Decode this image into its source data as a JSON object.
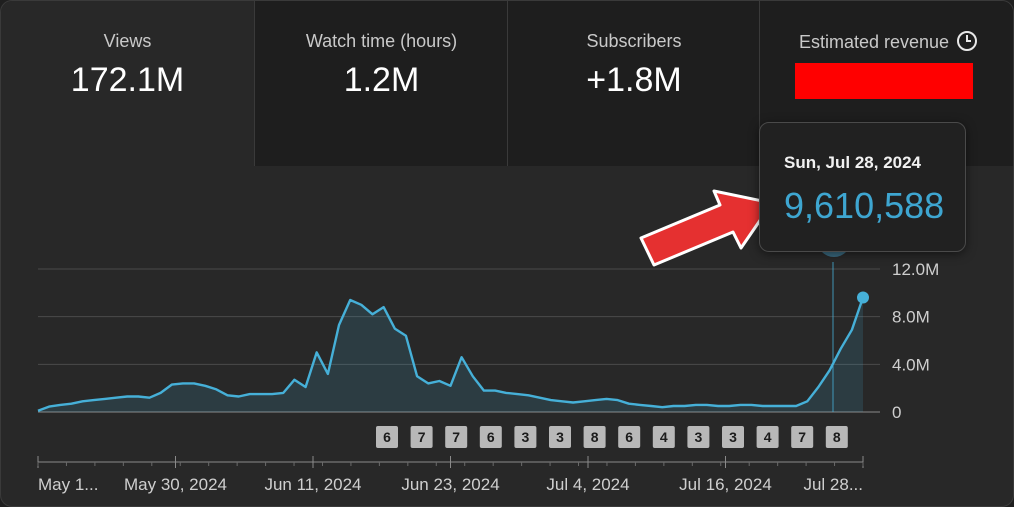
{
  "metrics": [
    {
      "label": "Views",
      "value": "172.1M"
    },
    {
      "label": "Watch time (hours)",
      "value": "1.2M"
    },
    {
      "label": "Subscribers",
      "value": "+1.8M"
    },
    {
      "label": "Estimated revenue",
      "value": ""
    }
  ],
  "revenue_icon": "clock-icon",
  "tooltip": {
    "date": "Sun, Jul 28, 2024",
    "value": "9,610,588"
  },
  "colors": {
    "line": "#46b0d8",
    "redact": "#ff0000",
    "arrow": "#e53030"
  },
  "chart_data": {
    "type": "area",
    "title": "Views",
    "x_labels": [
      "May 1...",
      "May 30, 2024",
      "Jun 11, 2024",
      "Jun 23, 2024",
      "Jul 4, 2024",
      "Jul 16, 2024",
      "Jul 28..."
    ],
    "y_ticks": [
      "0",
      "4.0M",
      "8.0M",
      "12.0M"
    ],
    "ylim": [
      0,
      12000000
    ],
    "series": [
      {
        "name": "Views",
        "values": [
          0.1,
          0.45,
          0.6,
          0.7,
          0.9,
          1.0,
          1.1,
          1.2,
          1.3,
          1.3,
          1.2,
          1.6,
          2.3,
          2.4,
          2.4,
          2.2,
          1.9,
          1.4,
          1.3,
          1.5,
          1.5,
          1.5,
          1.6,
          2.7,
          2.1,
          5.0,
          3.2,
          7.3,
          9.4,
          9.0,
          8.2,
          8.8,
          7.0,
          6.4,
          3.0,
          2.4,
          2.6,
          2.2,
          4.6,
          3.0,
          1.8,
          1.8,
          1.6,
          1.5,
          1.4,
          1.2,
          1.0,
          0.9,
          0.8,
          0.9,
          1.0,
          1.1,
          1.0,
          0.7,
          0.6,
          0.5,
          0.4,
          0.5,
          0.5,
          0.6,
          0.6,
          0.5,
          0.5,
          0.6,
          0.6,
          0.5,
          0.5,
          0.5,
          0.5,
          0.9,
          2.1,
          3.5,
          5.3,
          6.9,
          9.61
        ]
      }
    ],
    "annotation_counts": [
      "6",
      "7",
      "7",
      "6",
      "3",
      "3",
      "8",
      "6",
      "4",
      "3",
      "3",
      "4",
      "7",
      "8"
    ],
    "highlight": {
      "date": "Jul 28, 2024",
      "value": 9610588
    }
  }
}
